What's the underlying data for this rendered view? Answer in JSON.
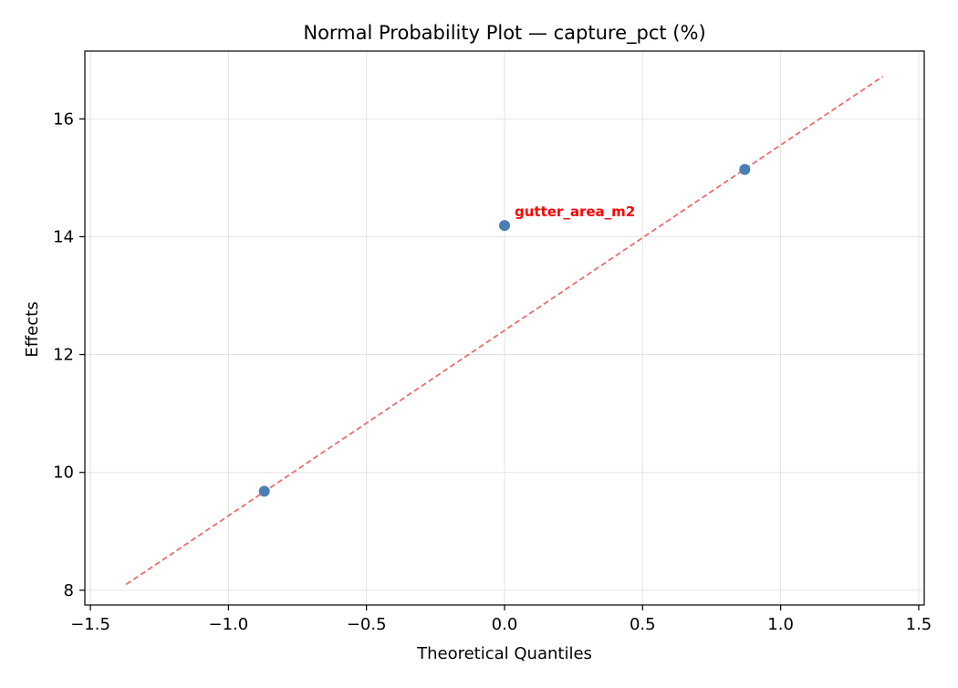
{
  "chart_data": {
    "type": "scatter",
    "title": "Normal Probability Plot — capture_pct (%)",
    "xlabel": "Theoretical Quantiles",
    "ylabel": "Effects",
    "xlim": [
      -1.52,
      1.52
    ],
    "ylim": [
      7.75,
      17.15
    ],
    "xticks": [
      -1.5,
      -1.0,
      -0.5,
      0.0,
      0.5,
      1.0,
      1.5
    ],
    "xtick_labels": [
      "−1.5",
      "−1.0",
      "−0.5",
      "0.0",
      "0.5",
      "1.0",
      "1.5"
    ],
    "yticks": [
      8,
      10,
      12,
      14,
      16
    ],
    "ytick_labels": [
      "8",
      "10",
      "12",
      "14",
      "16"
    ],
    "grid": true,
    "points": [
      {
        "x": -0.87,
        "y": 9.68,
        "label": ""
      },
      {
        "x": 0.0,
        "y": 14.19,
        "label": "gutter_area_m2"
      },
      {
        "x": 0.87,
        "y": 15.14,
        "label": ""
      }
    ],
    "reference_line": {
      "x": [
        -1.37,
        1.37
      ],
      "y": [
        8.1,
        16.72
      ],
      "style": "dashed"
    },
    "colors": {
      "points": "#4a7fb5",
      "reference_line": "#f26b6b",
      "annotation": "#ff0000",
      "grid": "#e3e3e3",
      "axes": "#000000"
    }
  }
}
